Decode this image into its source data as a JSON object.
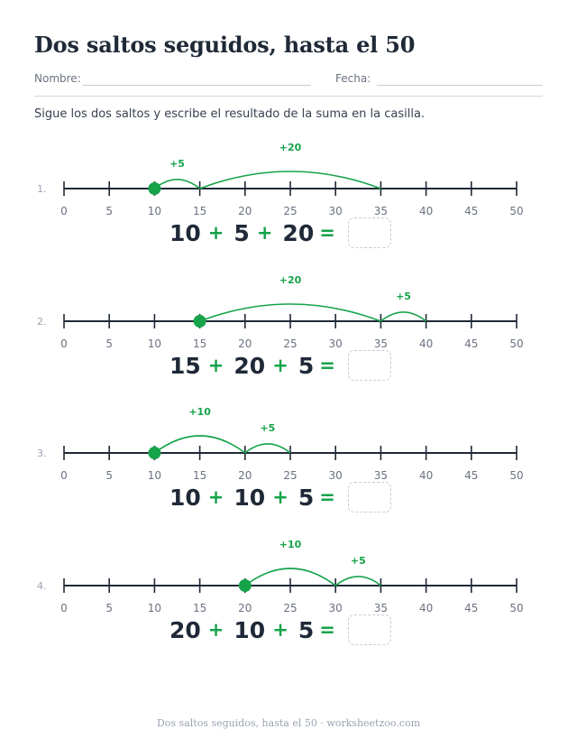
{
  "title": "Dos saltos seguidos, hasta el 50",
  "fields": {
    "name_label": "Nombre:",
    "date_label": "Fecha:"
  },
  "instructions": "Sigue los dos saltos y escribe el resultado de la suma en la casilla.",
  "number_line": {
    "min": 0,
    "max": 50,
    "step": 5,
    "tick_labels": [
      "0",
      "5",
      "10",
      "15",
      "20",
      "25",
      "30",
      "35",
      "40",
      "45",
      "50"
    ]
  },
  "colors": {
    "accent": "#16a34a",
    "line": "#1f2937",
    "text": "#1f2937",
    "muted": "#6b7280"
  },
  "problems": [
    {
      "number": "1.",
      "start": 10,
      "jumps": [
        5,
        20
      ],
      "labels": [
        "+5",
        "+20"
      ],
      "terms": [
        "10",
        "5",
        "20"
      ],
      "ops": [
        "+",
        "+"
      ],
      "equals": "="
    },
    {
      "number": "2.",
      "start": 15,
      "jumps": [
        20,
        5
      ],
      "labels": [
        "+20",
        "+5"
      ],
      "terms": [
        "15",
        "20",
        "5"
      ],
      "ops": [
        "+",
        "+"
      ],
      "equals": "="
    },
    {
      "number": "3.",
      "start": 10,
      "jumps": [
        10,
        5
      ],
      "labels": [
        "+10",
        "+5"
      ],
      "terms": [
        "10",
        "10",
        "5"
      ],
      "ops": [
        "+",
        "+"
      ],
      "equals": "="
    },
    {
      "number": "4.",
      "start": 20,
      "jumps": [
        10,
        5
      ],
      "labels": [
        "+10",
        "+5"
      ],
      "terms": [
        "20",
        "10",
        "5"
      ],
      "ops": [
        "+",
        "+"
      ],
      "equals": "="
    }
  ],
  "footer": "Dos saltos seguidos, hasta el 50 · worksheetzoo.com"
}
